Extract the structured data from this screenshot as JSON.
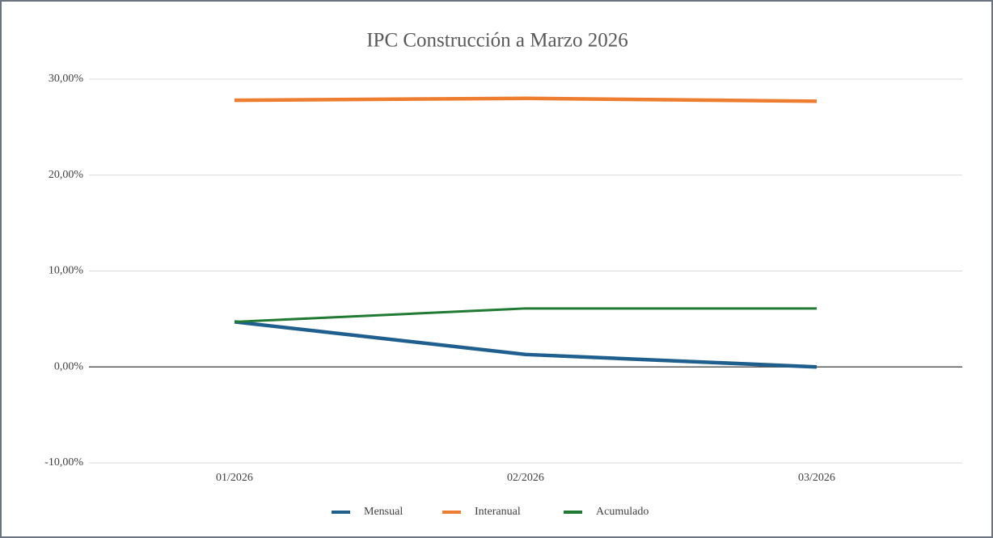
{
  "chart_data": {
    "type": "line",
    "title": "IPC Construcción a Marzo 2026",
    "categories": [
      "01/2026",
      "02/2026",
      "03/2026"
    ],
    "series": [
      {
        "name": "Mensual",
        "color": "#1f5f8e",
        "values": [
          4.7,
          1.3,
          0.0
        ]
      },
      {
        "name": "Interanual",
        "color": "#ed7d31",
        "values": [
          27.8,
          28.0,
          27.7
        ]
      },
      {
        "name": "Acumulado",
        "color": "#217a33",
        "values": [
          4.7,
          6.1,
          6.1
        ]
      }
    ],
    "ylim": [
      -10,
      30
    ],
    "yticks": [
      {
        "value": -10,
        "label": "-10,00%"
      },
      {
        "value": 0,
        "label": "0,00%"
      },
      {
        "value": 10,
        "label": "10,00%"
      },
      {
        "value": 20,
        "label": "20,00%"
      },
      {
        "value": 30,
        "label": "30,00%"
      }
    ],
    "grid": true,
    "legend": "bottom"
  }
}
